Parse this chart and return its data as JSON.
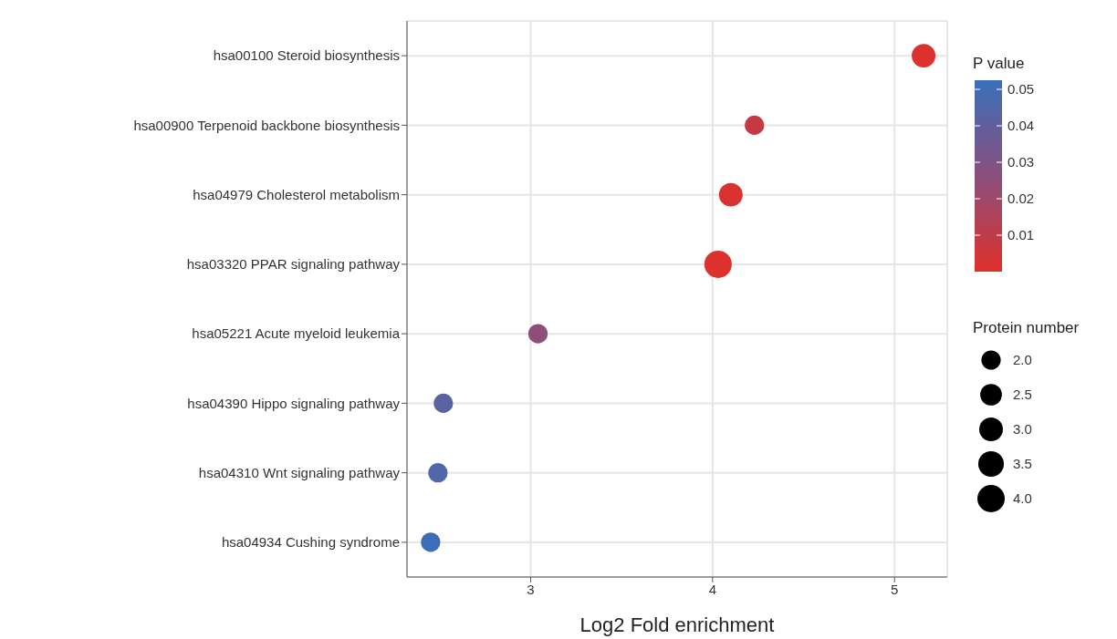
{
  "chart_data": {
    "type": "bubble",
    "xlabel": "Log2 Fold enrichment",
    "categories": [
      "hsa00100 Steroid biosynthesis",
      "hsa00900 Terpenoid backbone biosynthesis",
      "hsa04979 Cholesterol metabolism",
      "hsa03320 PPAR signaling pathway",
      "hsa05221 Acute myeloid leukemia",
      "hsa04390 Hippo signaling pathway",
      "hsa04310 Wnt signaling pathway",
      "hsa04934 Cushing syndrome"
    ],
    "values": [
      5.16,
      4.23,
      4.1,
      4.03,
      3.04,
      2.52,
      2.49,
      2.45
    ],
    "sizes": [
      3.0,
      2.0,
      3.0,
      4.0,
      2.0,
      2.0,
      2.0,
      2.0
    ],
    "cvalues": [
      0.001,
      0.008,
      0.002,
      0.001,
      0.025,
      0.042,
      0.045,
      0.052
    ],
    "clabel": "P value",
    "clim": [
      0,
      0.0525
    ],
    "cticks": [
      0.01,
      0.02,
      0.03,
      0.04,
      0.05
    ],
    "legend_title": "Protein number",
    "size_legend": [
      {
        "value": 2,
        "label": "2.0"
      },
      {
        "value": 2.5,
        "label": "2.5"
      },
      {
        "value": 3,
        "label": "3.0"
      },
      {
        "value": 3.5,
        "label": "3.5"
      },
      {
        "value": 4,
        "label": "4.0"
      }
    ],
    "orientation": "horizontal",
    "xlim": [
      2.32,
      5.29
    ],
    "xticks": [
      3,
      4,
      5
    ],
    "grid": true
  }
}
